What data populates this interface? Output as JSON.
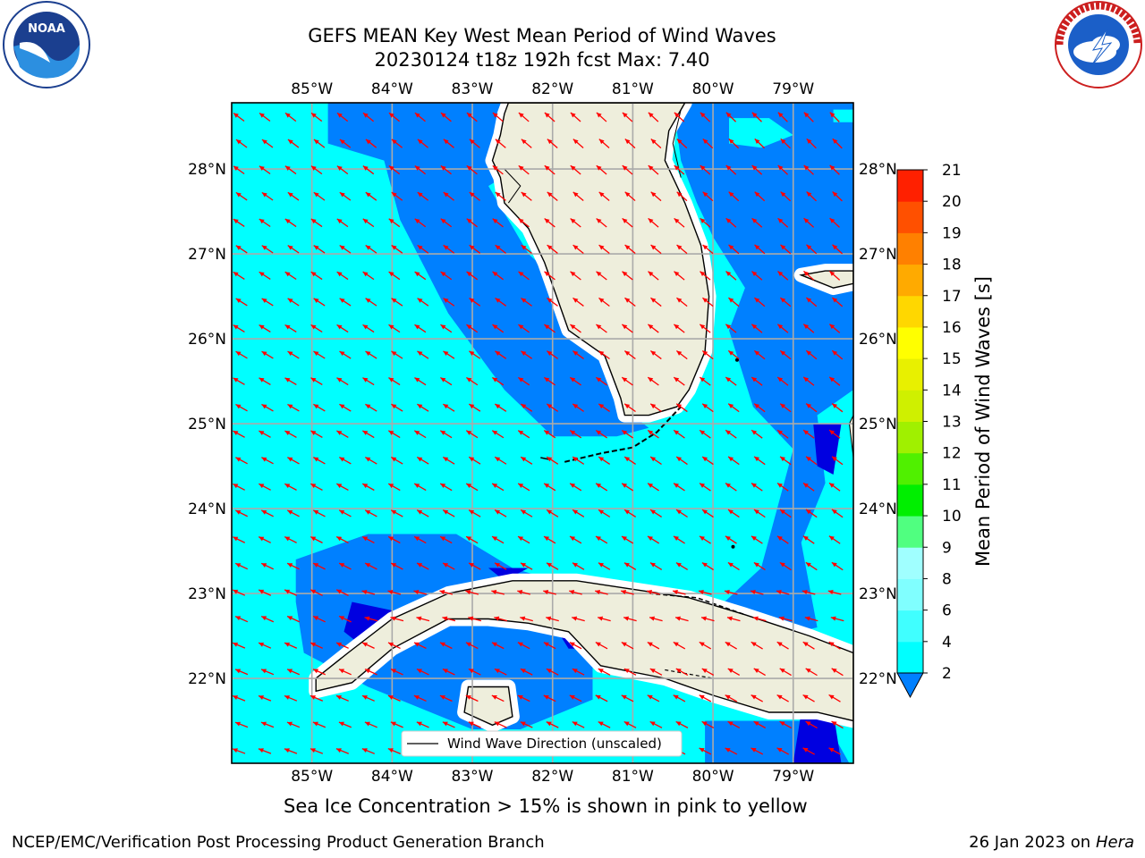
{
  "header": {
    "title_line1": "GEFS MEAN Key West Mean Period of Wind Waves",
    "title_line2": "20230124 t18z 192h fcst   Max: 7.40"
  },
  "logos": {
    "left": {
      "text": "NOAA",
      "ring": "NATIONAL OCEANIC AND ATMOSPHERIC ADMINISTRATION · U.S. DEPARTMENT OF COMMERCE"
    },
    "right": {
      "ring": "NATIONAL WEATHER SERVICE"
    }
  },
  "map": {
    "lon_labels": [
      "85°W",
      "84°W",
      "83°W",
      "82°W",
      "81°W",
      "80°W",
      "79°W"
    ],
    "lat_labels": [
      "28°N",
      "27°N",
      "26°N",
      "25°N",
      "24°N",
      "23°N",
      "22°N"
    ],
    "lon_values": [
      -85,
      -84,
      -83,
      -82,
      -81,
      -80,
      -79
    ],
    "lat_values": [
      28,
      27,
      26,
      25,
      24,
      23,
      22
    ],
    "extent": {
      "lon_min": -86.0,
      "lon_max": -78.25,
      "lat_min": 21.0,
      "lat_max": 28.78
    },
    "legend_label": "Wind Wave Direction (unscaled)",
    "colors": {
      "land": "#eeeedc",
      "cyan": "#00ffff",
      "blue": "#0080ff",
      "deep": "#0000e0",
      "arrow": "#ff0000"
    }
  },
  "colorbar": {
    "label": "Mean Period of Wind Waves [s]",
    "ticks": [
      "2",
      "4",
      "6",
      "8",
      "9",
      "10",
      "11",
      "12",
      "13",
      "14",
      "15",
      "16",
      "17",
      "18",
      "19",
      "20",
      "21"
    ],
    "colors": [
      "#0080ff",
      "#00ffff",
      "#40ffff",
      "#80ffff",
      "#a0ffff",
      "#50ff80",
      "#00ef00",
      "#50f000",
      "#a0f000",
      "#cff000",
      "#e8f000",
      "#ffff00",
      "#ffd700",
      "#ffaa00",
      "#ff8000",
      "#ff5000",
      "#ff2000",
      "#ff0000"
    ]
  },
  "footer": {
    "note": "Sea Ice Concentration > 15% is shown in pink to yellow",
    "left": "NCEP/EMC/Verification Post Processing Product Generation Branch",
    "right_date": "26 Jan 2023 on ",
    "right_host": "Hera"
  }
}
